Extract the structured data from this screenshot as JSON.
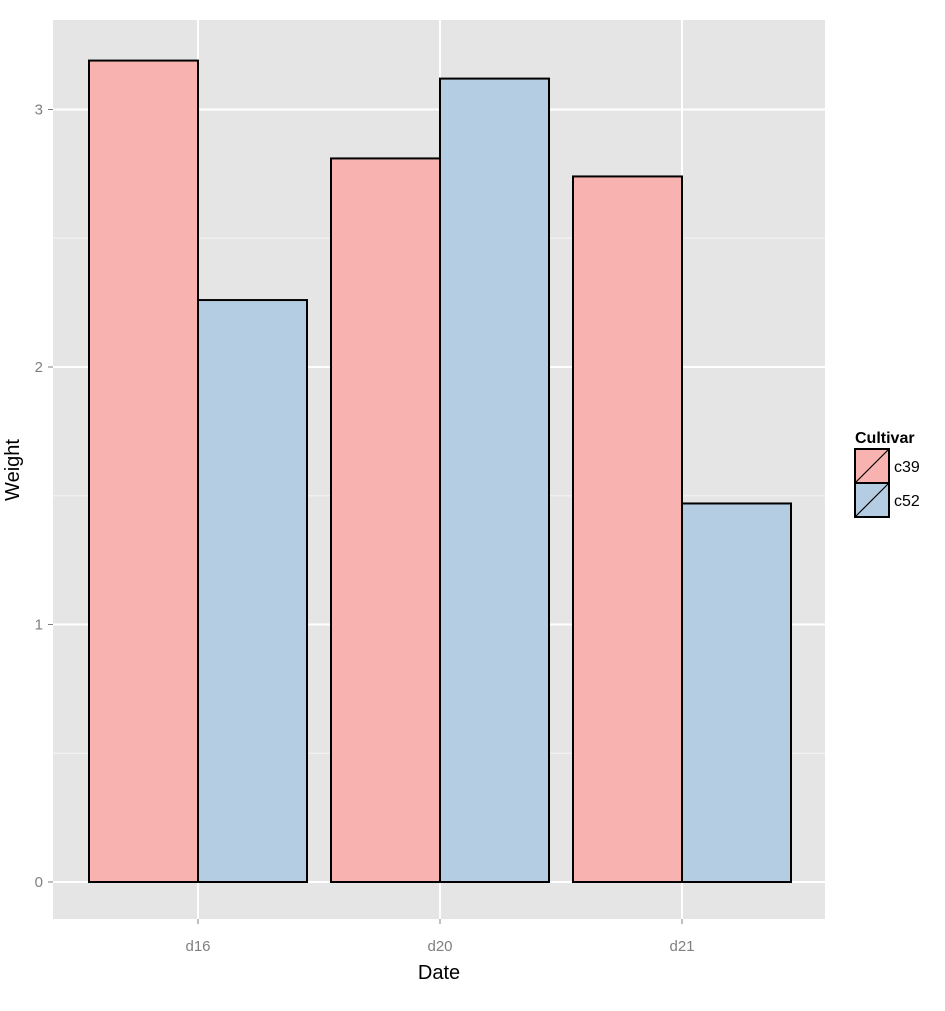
{
  "chart_data": {
    "type": "bar",
    "categories": [
      "d16",
      "d20",
      "d21"
    ],
    "series": [
      {
        "name": "c39",
        "values": [
          3.19,
          2.81,
          2.74
        ],
        "color": "#f8b3b0"
      },
      {
        "name": "c52",
        "values": [
          2.26,
          3.12,
          1.47
        ],
        "color": "#b4cde3"
      }
    ],
    "title": "",
    "xlabel": "Date",
    "ylabel": "Weight",
    "ylim": [
      -0.15,
      3.5
    ],
    "yticks": [
      0,
      1,
      2,
      3
    ],
    "ytick_labels": [
      "0",
      "1",
      "2",
      "3"
    ],
    "grid": true,
    "legend": {
      "title": "Cultivar",
      "placement": "right"
    },
    "colors": {
      "panel": "#e5e5e5",
      "grid_major": "#ffffff",
      "grid_minor": "#f2f2f2",
      "bar_outline": "#000000"
    }
  }
}
